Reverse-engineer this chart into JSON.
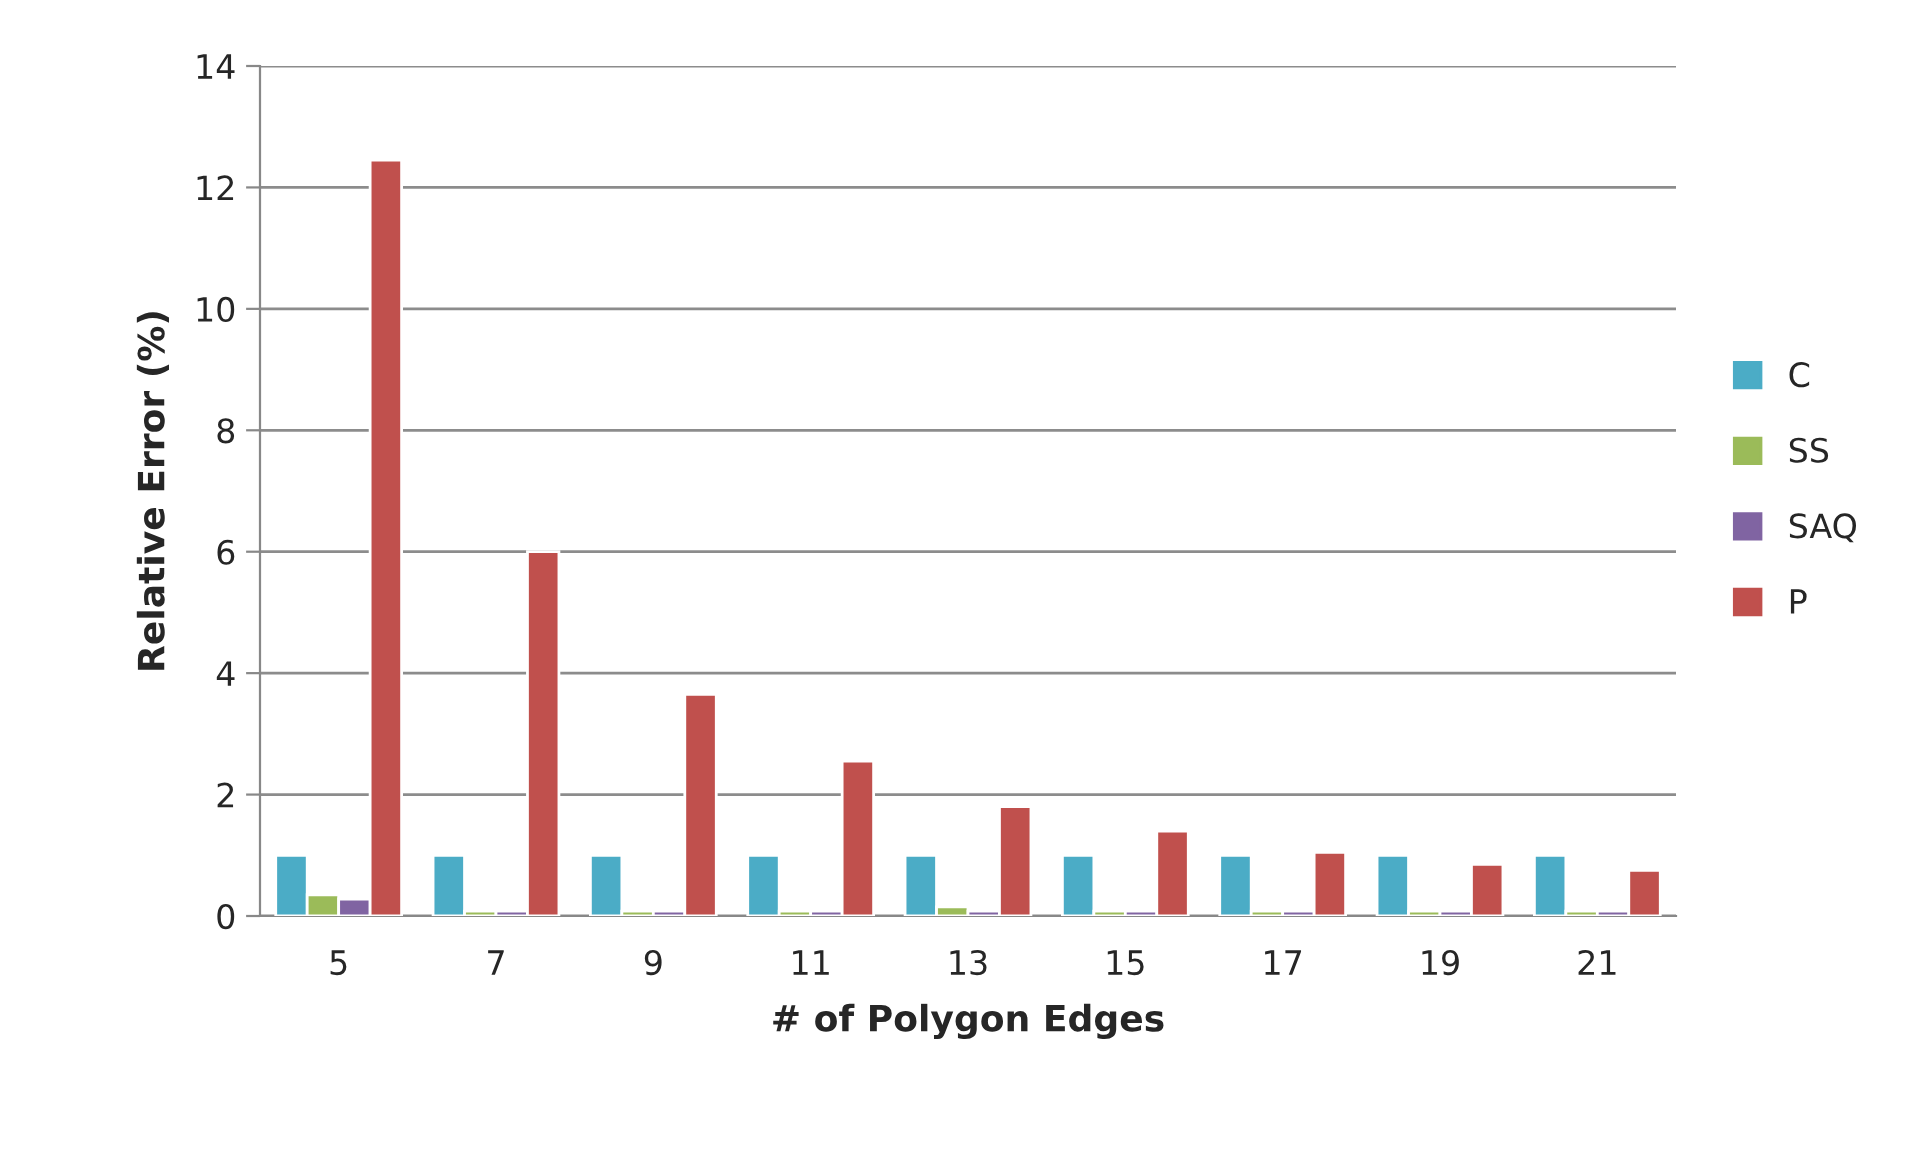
{
  "chart_data": {
    "type": "bar",
    "xlabel": "# of Polygon Edges",
    "ylabel": "Relative Error (%)",
    "categories": [
      "5",
      "7",
      "9",
      "11",
      "13",
      "15",
      "17",
      "19",
      "21"
    ],
    "series": [
      {
        "name": "C",
        "color": "#4bacc6",
        "values": [
          1,
          1,
          1,
          1,
          1,
          1,
          1,
          1,
          1
        ]
      },
      {
        "name": "SS",
        "color": "#9bbb59",
        "values": [
          0.35,
          0.08,
          0.08,
          0.08,
          0.15,
          0.08,
          0.08,
          0.08,
          0.08
        ]
      },
      {
        "name": "SAQ",
        "color": "#8064a2",
        "values": [
          0.28,
          0.08,
          0.08,
          0.08,
          0.08,
          0.08,
          0.08,
          0.08,
          0.08
        ]
      },
      {
        "name": "P",
        "color": "#c0504d",
        "values": [
          12.45,
          6.0,
          3.65,
          2.55,
          1.8,
          1.4,
          1.05,
          0.85,
          0.75
        ]
      }
    ],
    "ylim": [
      0,
      14
    ],
    "yticks": [
      0,
      2,
      4,
      6,
      8,
      10,
      12,
      14
    ],
    "grid": "y",
    "legend": "right"
  }
}
